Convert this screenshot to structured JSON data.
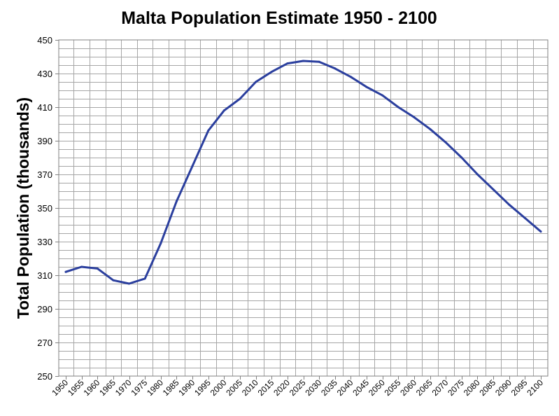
{
  "chart_data": {
    "type": "line",
    "title": "Malta Population Estimate 1950 - 2100",
    "xlabel": "",
    "ylabel": "Total Population (thousands)",
    "ylim": [
      250,
      450
    ],
    "yticks": [
      250,
      270,
      290,
      310,
      330,
      350,
      370,
      390,
      410,
      430,
      450
    ],
    "y_minor_step": 5,
    "xlim": [
      1950,
      2100
    ],
    "xticks": [
      1950,
      1955,
      1960,
      1965,
      1970,
      1975,
      1980,
      1985,
      1990,
      1995,
      2000,
      2005,
      2010,
      2015,
      2020,
      2025,
      2030,
      2035,
      2040,
      2045,
      2050,
      2055,
      2060,
      2065,
      2070,
      2075,
      2080,
      2085,
      2090,
      2095,
      2100
    ],
    "grid": true,
    "legend": "none",
    "line_color": "#2b3f9e",
    "series": [
      {
        "name": "Total Population",
        "x": [
          1950,
          1955,
          1960,
          1965,
          1970,
          1975,
          1980,
          1985,
          1990,
          1995,
          2000,
          2005,
          2010,
          2015,
          2020,
          2025,
          2030,
          2035,
          2040,
          2045,
          2050,
          2055,
          2060,
          2065,
          2070,
          2075,
          2080,
          2085,
          2090,
          2095,
          2100
        ],
        "values": [
          312,
          315,
          314,
          307,
          305,
          308,
          329,
          354,
          375,
          396,
          408,
          415,
          425,
          431,
          436,
          437.5,
          437,
          433,
          428,
          422,
          417,
          410,
          404,
          397,
          389,
          380,
          370,
          361,
          352,
          344,
          336
        ]
      }
    ]
  }
}
